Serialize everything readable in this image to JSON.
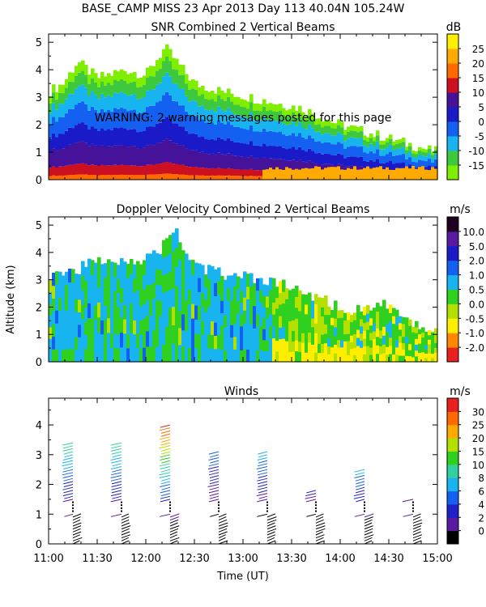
{
  "header": {
    "line1": "BASE_CAMP MISS  23 Apr 2013 Day 113 40.04N 105.24W"
  },
  "warning_text": "WARNING: 2 warning messages posted for this page",
  "y_axis_label": "Altitude (km)",
  "x_axis_label": "Time (UT)",
  "chart_data": [
    {
      "type": "heatmap",
      "title": "SNR Combined 2 Vertical Beams",
      "xlabel": "Time (UT)",
      "ylabel": "Altitude (km)",
      "xlim": [
        11.0,
        15.0
      ],
      "ylim": [
        0,
        5.3
      ],
      "yticks": [
        "0",
        "1",
        "2",
        "3",
        "4",
        "5"
      ],
      "colorbar_unit": "dB",
      "colorbar_labels": [
        "-15",
        "-10",
        "-5",
        "0",
        "5",
        "10",
        "15",
        "20",
        "25"
      ],
      "colorbar_colors": [
        "#80ee00",
        "#3ec83e",
        "#18b4f0",
        "#1460f0",
        "#1a1ac8",
        "#46129a",
        "#cc1020",
        "#ff6a00",
        "#ffaa00",
        "#ffee00"
      ],
      "top_profile": [
        {
          "t": 11.0,
          "alt": 3.2
        },
        {
          "t": 11.15,
          "alt": 3.5
        },
        {
          "t": 11.3,
          "alt": 4.3
        },
        {
          "t": 11.5,
          "alt": 3.7
        },
        {
          "t": 11.8,
          "alt": 4.0
        },
        {
          "t": 12.0,
          "alt": 3.8
        },
        {
          "t": 12.2,
          "alt": 4.8
        },
        {
          "t": 12.5,
          "alt": 3.5
        },
        {
          "t": 12.8,
          "alt": 3.2
        },
        {
          "t": 13.2,
          "alt": 2.9
        },
        {
          "t": 13.6,
          "alt": 2.6
        },
        {
          "t": 14.0,
          "alt": 2.0
        },
        {
          "t": 14.3,
          "alt": 1.7
        },
        {
          "t": 14.6,
          "alt": 1.4
        },
        {
          "t": 15.0,
          "alt": 1.0
        }
      ]
    },
    {
      "type": "heatmap",
      "title": "Doppler Velocity Combined 2 Vertical Beams",
      "xlabel": "Time (UT)",
      "ylabel": "Altitude (km)",
      "xlim": [
        11.0,
        15.0
      ],
      "ylim": [
        0,
        5.3
      ],
      "yticks": [
        "0",
        "1",
        "2",
        "3",
        "4",
        "5"
      ],
      "colorbar_unit": "m/s",
      "colorbar_labels": [
        "-2.0",
        "-1.0",
        "-0.5",
        "0.0",
        "0.5",
        "1.0",
        "2.0",
        "5.0",
        "10.0"
      ],
      "colorbar_colors": [
        "#e82020",
        "#ff8800",
        "#ffee00",
        "#b4e000",
        "#30d020",
        "#18b4f0",
        "#1460f0",
        "#1a1ac8",
        "#5a1aa0",
        "#200020"
      ],
      "top_profile": [
        {
          "t": 11.0,
          "alt": 3.2
        },
        {
          "t": 11.3,
          "alt": 3.4
        },
        {
          "t": 11.6,
          "alt": 3.8
        },
        {
          "t": 11.9,
          "alt": 3.7
        },
        {
          "t": 12.1,
          "alt": 3.9
        },
        {
          "t": 12.3,
          "alt": 4.8
        },
        {
          "t": 12.5,
          "alt": 3.5
        },
        {
          "t": 12.8,
          "alt": 3.2
        },
        {
          "t": 13.2,
          "alt": 3.0
        },
        {
          "t": 13.5,
          "alt": 2.7
        },
        {
          "t": 13.8,
          "alt": 2.3
        },
        {
          "t": 14.1,
          "alt": 1.8
        },
        {
          "t": 14.4,
          "alt": 2.2
        },
        {
          "t": 14.7,
          "alt": 1.4
        },
        {
          "t": 15.0,
          "alt": 1.1
        }
      ]
    },
    {
      "type": "scatter",
      "title": "Winds",
      "xlabel": "Time (UT)",
      "ylabel": "Altitude (km)",
      "xlim": [
        11.0,
        15.0
      ],
      "ylim": [
        0,
        4.9
      ],
      "yticks": [
        "0",
        "1",
        "2",
        "3",
        "4"
      ],
      "xticks": [
        "11:00",
        "11:30",
        "12:00",
        "12:30",
        "13:00",
        "13:30",
        "14:00",
        "14:30",
        "15:00"
      ],
      "colorbar_unit": "m/s",
      "colorbar_labels": [
        "0",
        "2",
        "4",
        "6",
        "8",
        "10",
        "15",
        "20",
        "25",
        "30"
      ],
      "colorbar_colors": [
        "#000000",
        "#5a1aa0",
        "#2020c8",
        "#1460f0",
        "#18b4f0",
        "#30d0a0",
        "#30d020",
        "#b4e000",
        "#ffaa00",
        "#ff6a00",
        "#e82020"
      ],
      "profiles": [
        {
          "time": 11.25,
          "top_km": 3.4,
          "max_speed": 16
        },
        {
          "time": 11.75,
          "top_km": 3.4,
          "max_speed": 16
        },
        {
          "time": 12.25,
          "top_km": 4.0,
          "max_speed": 28
        },
        {
          "time": 12.75,
          "top_km": 3.1,
          "max_speed": 10
        },
        {
          "time": 13.25,
          "top_km": 3.1,
          "max_speed": 12
        },
        {
          "time": 13.75,
          "top_km": 1.8,
          "max_speed": 6
        },
        {
          "time": 14.25,
          "top_km": 2.5,
          "max_speed": 12
        },
        {
          "time": 14.75,
          "top_km": 1.5,
          "max_speed": 5
        }
      ]
    }
  ]
}
